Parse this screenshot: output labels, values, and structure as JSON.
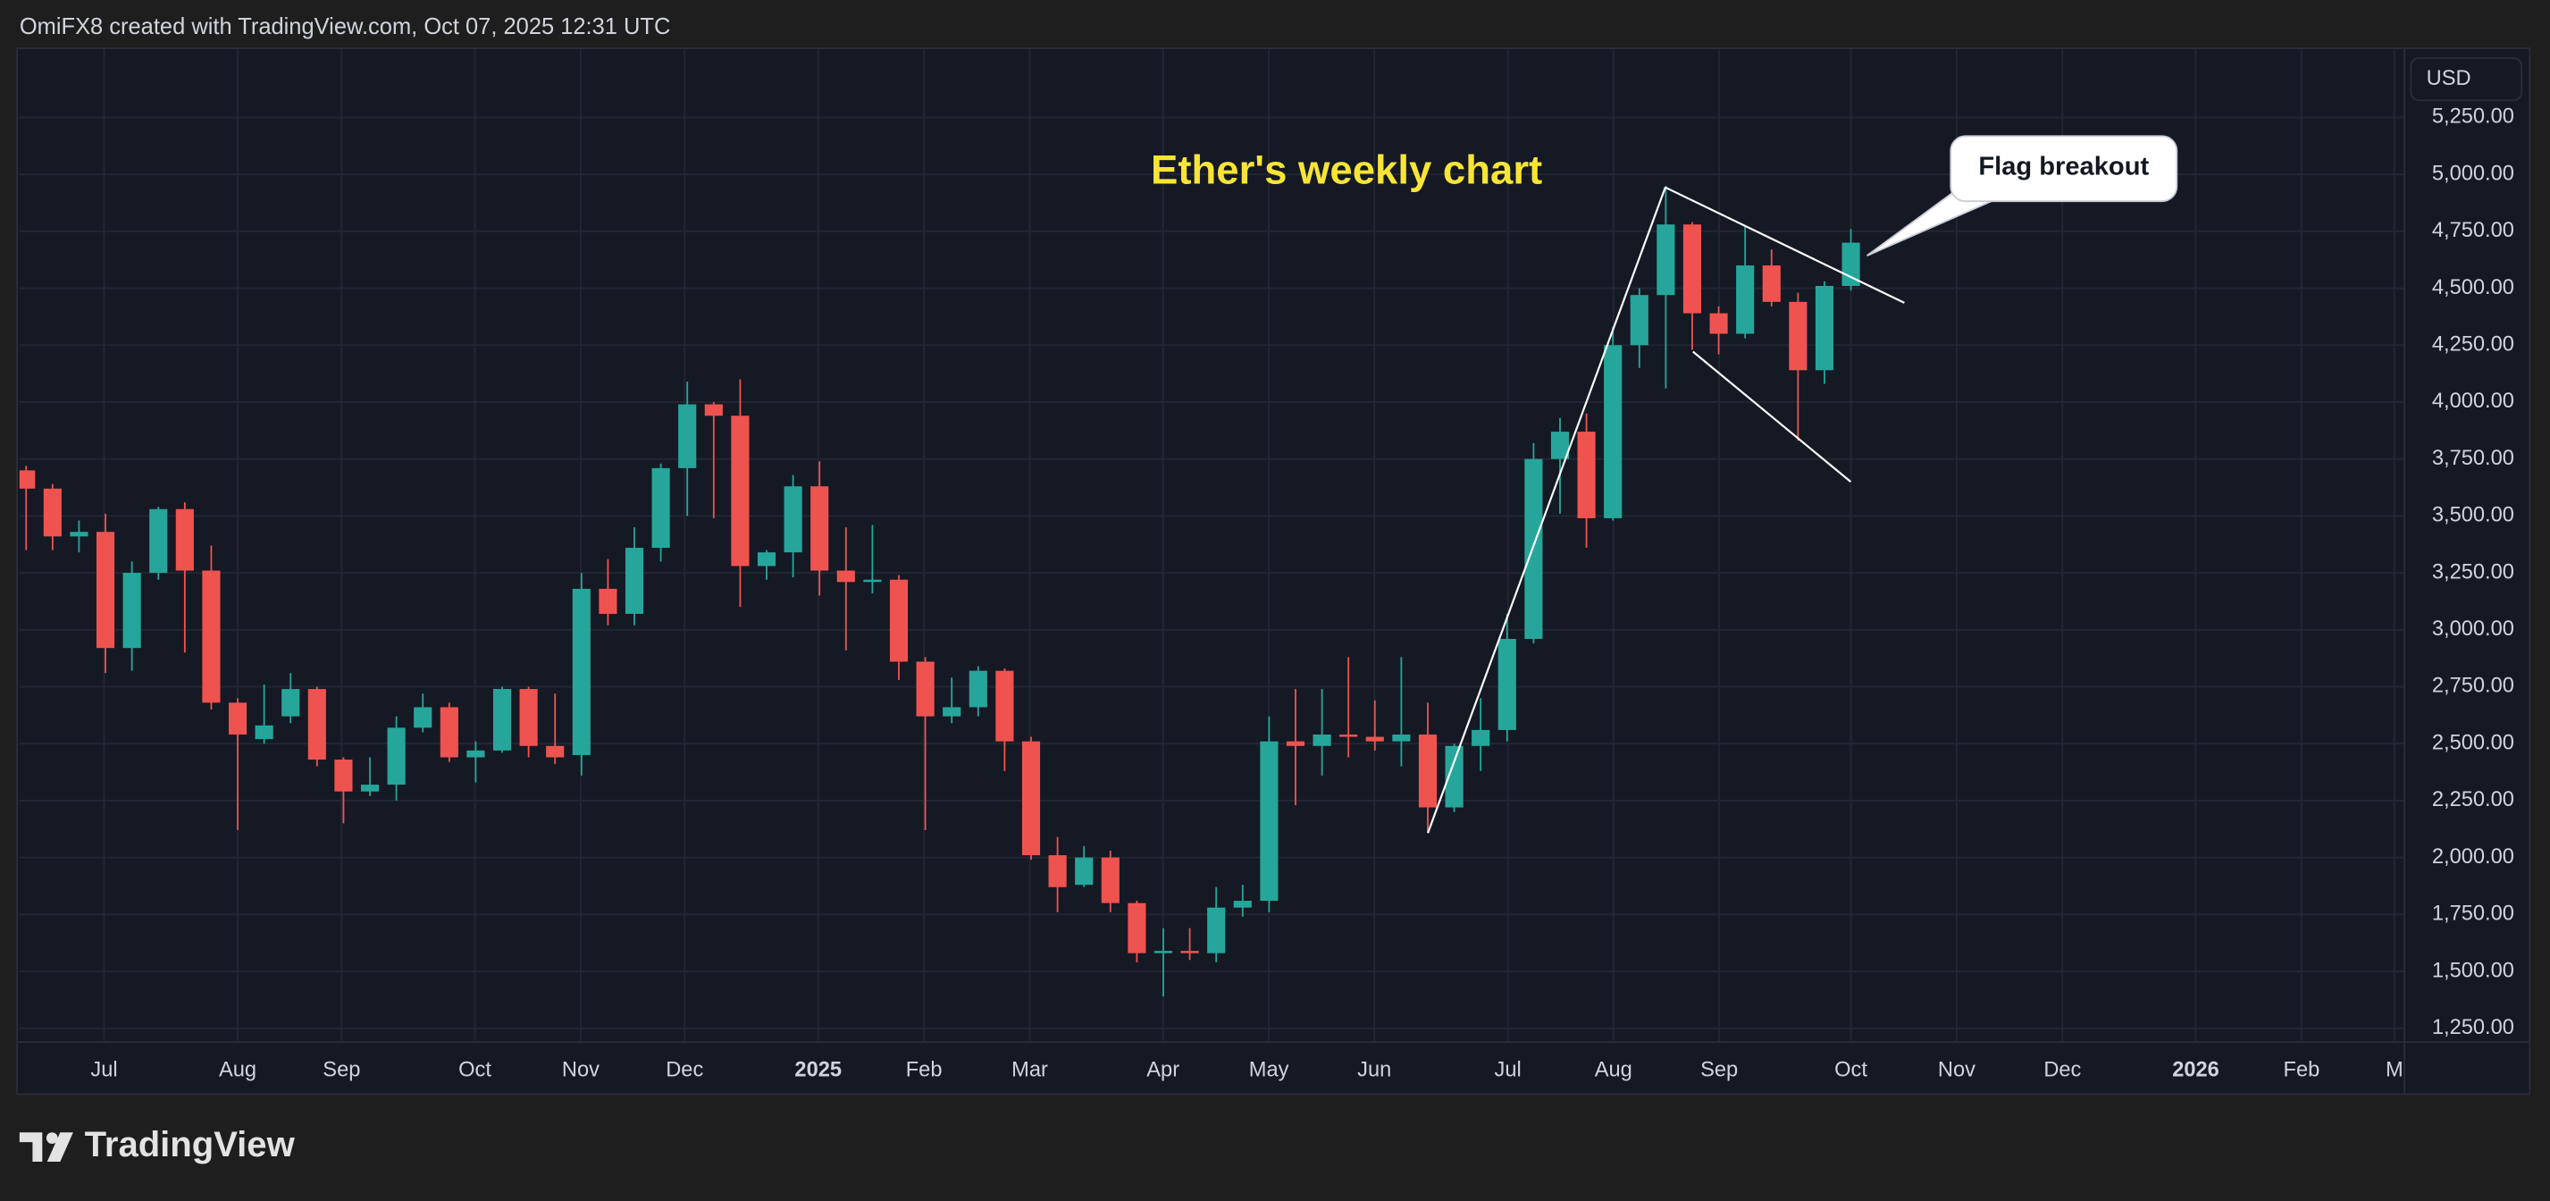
{
  "header": "OmiFX8 created with TradingView.com, Oct 07, 2025 12:31 UTC",
  "footer": {
    "brand": "TradingView"
  },
  "chart_data": {
    "type": "candlestick",
    "currency": "USD",
    "annotations": [
      {
        "text": "Ether's weekly chart",
        "color": "#f7e436"
      },
      {
        "text": "Flag breakout"
      }
    ],
    "up_color": "#26a69a",
    "down_color": "#ef5350",
    "grid": true,
    "x": [
      0,
      1,
      2,
      3,
      4,
      5,
      6,
      7,
      8,
      9,
      10,
      11,
      12,
      13,
      14,
      15,
      16,
      17,
      18,
      19,
      20,
      21,
      22,
      23,
      24,
      25,
      26,
      27,
      28,
      29,
      30,
      31,
      32,
      33,
      34,
      35,
      36,
      37,
      38,
      39,
      40,
      41,
      42,
      43,
      44,
      45,
      46,
      47,
      48,
      49,
      50,
      51,
      52,
      53,
      54,
      55,
      56,
      57,
      58,
      59,
      60,
      61,
      62,
      63,
      64,
      65,
      66,
      67,
      68,
      69
    ],
    "open": [
      3700,
      3620,
      3410,
      3430,
      2920,
      3250,
      3530,
      3260,
      2680,
      2520,
      2620,
      2740,
      2430,
      2290,
      2320,
      2570,
      2660,
      2440,
      2470,
      2740,
      2490,
      2450,
      3180,
      3070,
      3360,
      3710,
      3990,
      3940,
      3280,
      3340,
      3630,
      3260,
      3210,
      3220,
      2860,
      2620,
      2660,
      2820,
      2510,
      2010,
      1880,
      2000,
      1800,
      1580,
      1590,
      1580,
      1780,
      1810,
      2510,
      2490,
      2540,
      2530,
      2510,
      2540,
      2220,
      2490,
      2560,
      2960,
      3750,
      3870,
      3490,
      4250,
      4470,
      4780,
      4390,
      4300,
      4600,
      4440,
      4140,
      4510
    ],
    "high": [
      3720,
      3640,
      3480,
      3510,
      3300,
      3540,
      3560,
      3370,
      2700,
      2760,
      2810,
      2750,
      2440,
      2440,
      2620,
      2720,
      2680,
      2510,
      2750,
      2750,
      2720,
      3250,
      3310,
      3450,
      3730,
      4090,
      4000,
      4100,
      3350,
      3680,
      3740,
      3450,
      3460,
      3240,
      2880,
      2790,
      2840,
      2830,
      2530,
      2090,
      2050,
      2030,
      1810,
      1690,
      1690,
      1870,
      1880,
      2620,
      2740,
      2740,
      2880,
      2690,
      2880,
      2680,
      2500,
      2700,
      3070,
      3820,
      3930,
      3950,
      4330,
      4500,
      4950,
      4790,
      4420,
      4770,
      4670,
      4480,
      4530,
      4760
    ],
    "low": [
      3350,
      3350,
      3340,
      2810,
      2820,
      3220,
      2900,
      2650,
      2120,
      2500,
      2590,
      2400,
      2150,
      2270,
      2250,
      2550,
      2420,
      2330,
      2460,
      2440,
      2410,
      2360,
      3020,
      3020,
      3300,
      3500,
      3490,
      3100,
      3220,
      3230,
      3150,
      2910,
      3160,
      2780,
      2120,
      2590,
      2620,
      2380,
      1990,
      1760,
      1870,
      1760,
      1540,
      1390,
      1550,
      1540,
      1740,
      1760,
      2230,
      2360,
      2440,
      2470,
      2400,
      2110,
      2200,
      2380,
      2510,
      2940,
      3510,
      3360,
      3480,
      4150,
      4060,
      4230,
      4210,
      4280,
      4420,
      3830,
      4080,
      4490
    ],
    "close": [
      3620,
      3410,
      3430,
      2920,
      3250,
      3530,
      3260,
      2680,
      2540,
      2580,
      2740,
      2430,
      2290,
      2320,
      2570,
      2660,
      2440,
      2470,
      2740,
      2490,
      2440,
      3180,
      3070,
      3360,
      3710,
      3990,
      3940,
      3280,
      3340,
      3630,
      3260,
      3210,
      3220,
      2860,
      2620,
      2660,
      2820,
      2510,
      2010,
      1870,
      2000,
      1800,
      1580,
      1590,
      1580,
      1780,
      1810,
      2510,
      2490,
      2540,
      2530,
      2510,
      2540,
      2220,
      2490,
      2560,
      2960,
      3750,
      3870,
      3490,
      4250,
      4470,
      4780,
      4390,
      4300,
      4600,
      4440,
      4140,
      4510,
      4700
    ],
    "xlim": [
      -0.25,
      89.9
    ],
    "xticks": [
      {
        "value": 2.95,
        "label": "Jul"
      },
      {
        "value": 8.0,
        "label": "Aug"
      },
      {
        "value": 11.93,
        "label": "Sep"
      },
      {
        "value": 16.97,
        "label": "Oct"
      },
      {
        "value": 20.97,
        "label": "Nov"
      },
      {
        "value": 24.9,
        "label": "Dec"
      },
      {
        "value": 29.95,
        "label": "2025"
      },
      {
        "value": 33.95,
        "label": "Feb"
      },
      {
        "value": 37.95,
        "label": "Mar"
      },
      {
        "value": 42.99,
        "label": "Apr"
      },
      {
        "value": 46.99,
        "label": "May"
      },
      {
        "value": 50.98,
        "label": "Jun"
      },
      {
        "value": 56.03,
        "label": "Jul"
      },
      {
        "value": 60.02,
        "label": "Aug"
      },
      {
        "value": 64.02,
        "label": "Sep"
      },
      {
        "value": 69.0,
        "label": "Oct"
      },
      {
        "value": 73.0,
        "label": "Nov"
      },
      {
        "value": 77.0,
        "label": "Dec"
      },
      {
        "value": 82.04,
        "label": "2026"
      },
      {
        "value": 86.04,
        "label": "Feb"
      },
      {
        "value": 89.55,
        "label": "M"
      }
    ],
    "ylim": [
      1193,
      5550
    ],
    "yticks": [
      {
        "value": 1250,
        "label": "1,250.00"
      },
      {
        "value": 1500,
        "label": "1,500.00"
      },
      {
        "value": 1750,
        "label": "1,750.00"
      },
      {
        "value": 2000,
        "label": "2,000.00"
      },
      {
        "value": 2250,
        "label": "2,250.00"
      },
      {
        "value": 2500,
        "label": "2,500.00"
      },
      {
        "value": 2750,
        "label": "2,750.00"
      },
      {
        "value": 3000,
        "label": "3,000.00"
      },
      {
        "value": 3250,
        "label": "3,250.00"
      },
      {
        "value": 3500,
        "label": "3,500.00"
      },
      {
        "value": 3750,
        "label": "3,750.00"
      },
      {
        "value": 4000,
        "label": "4,000.00"
      },
      {
        "value": 4250,
        "label": "4,250.00"
      },
      {
        "value": 4500,
        "label": "4,500.00"
      },
      {
        "value": 4750,
        "label": "4,750.00"
      },
      {
        "value": 5000,
        "label": "5,000.00"
      },
      {
        "value": 5250,
        "label": "5,250.00"
      }
    ]
  }
}
